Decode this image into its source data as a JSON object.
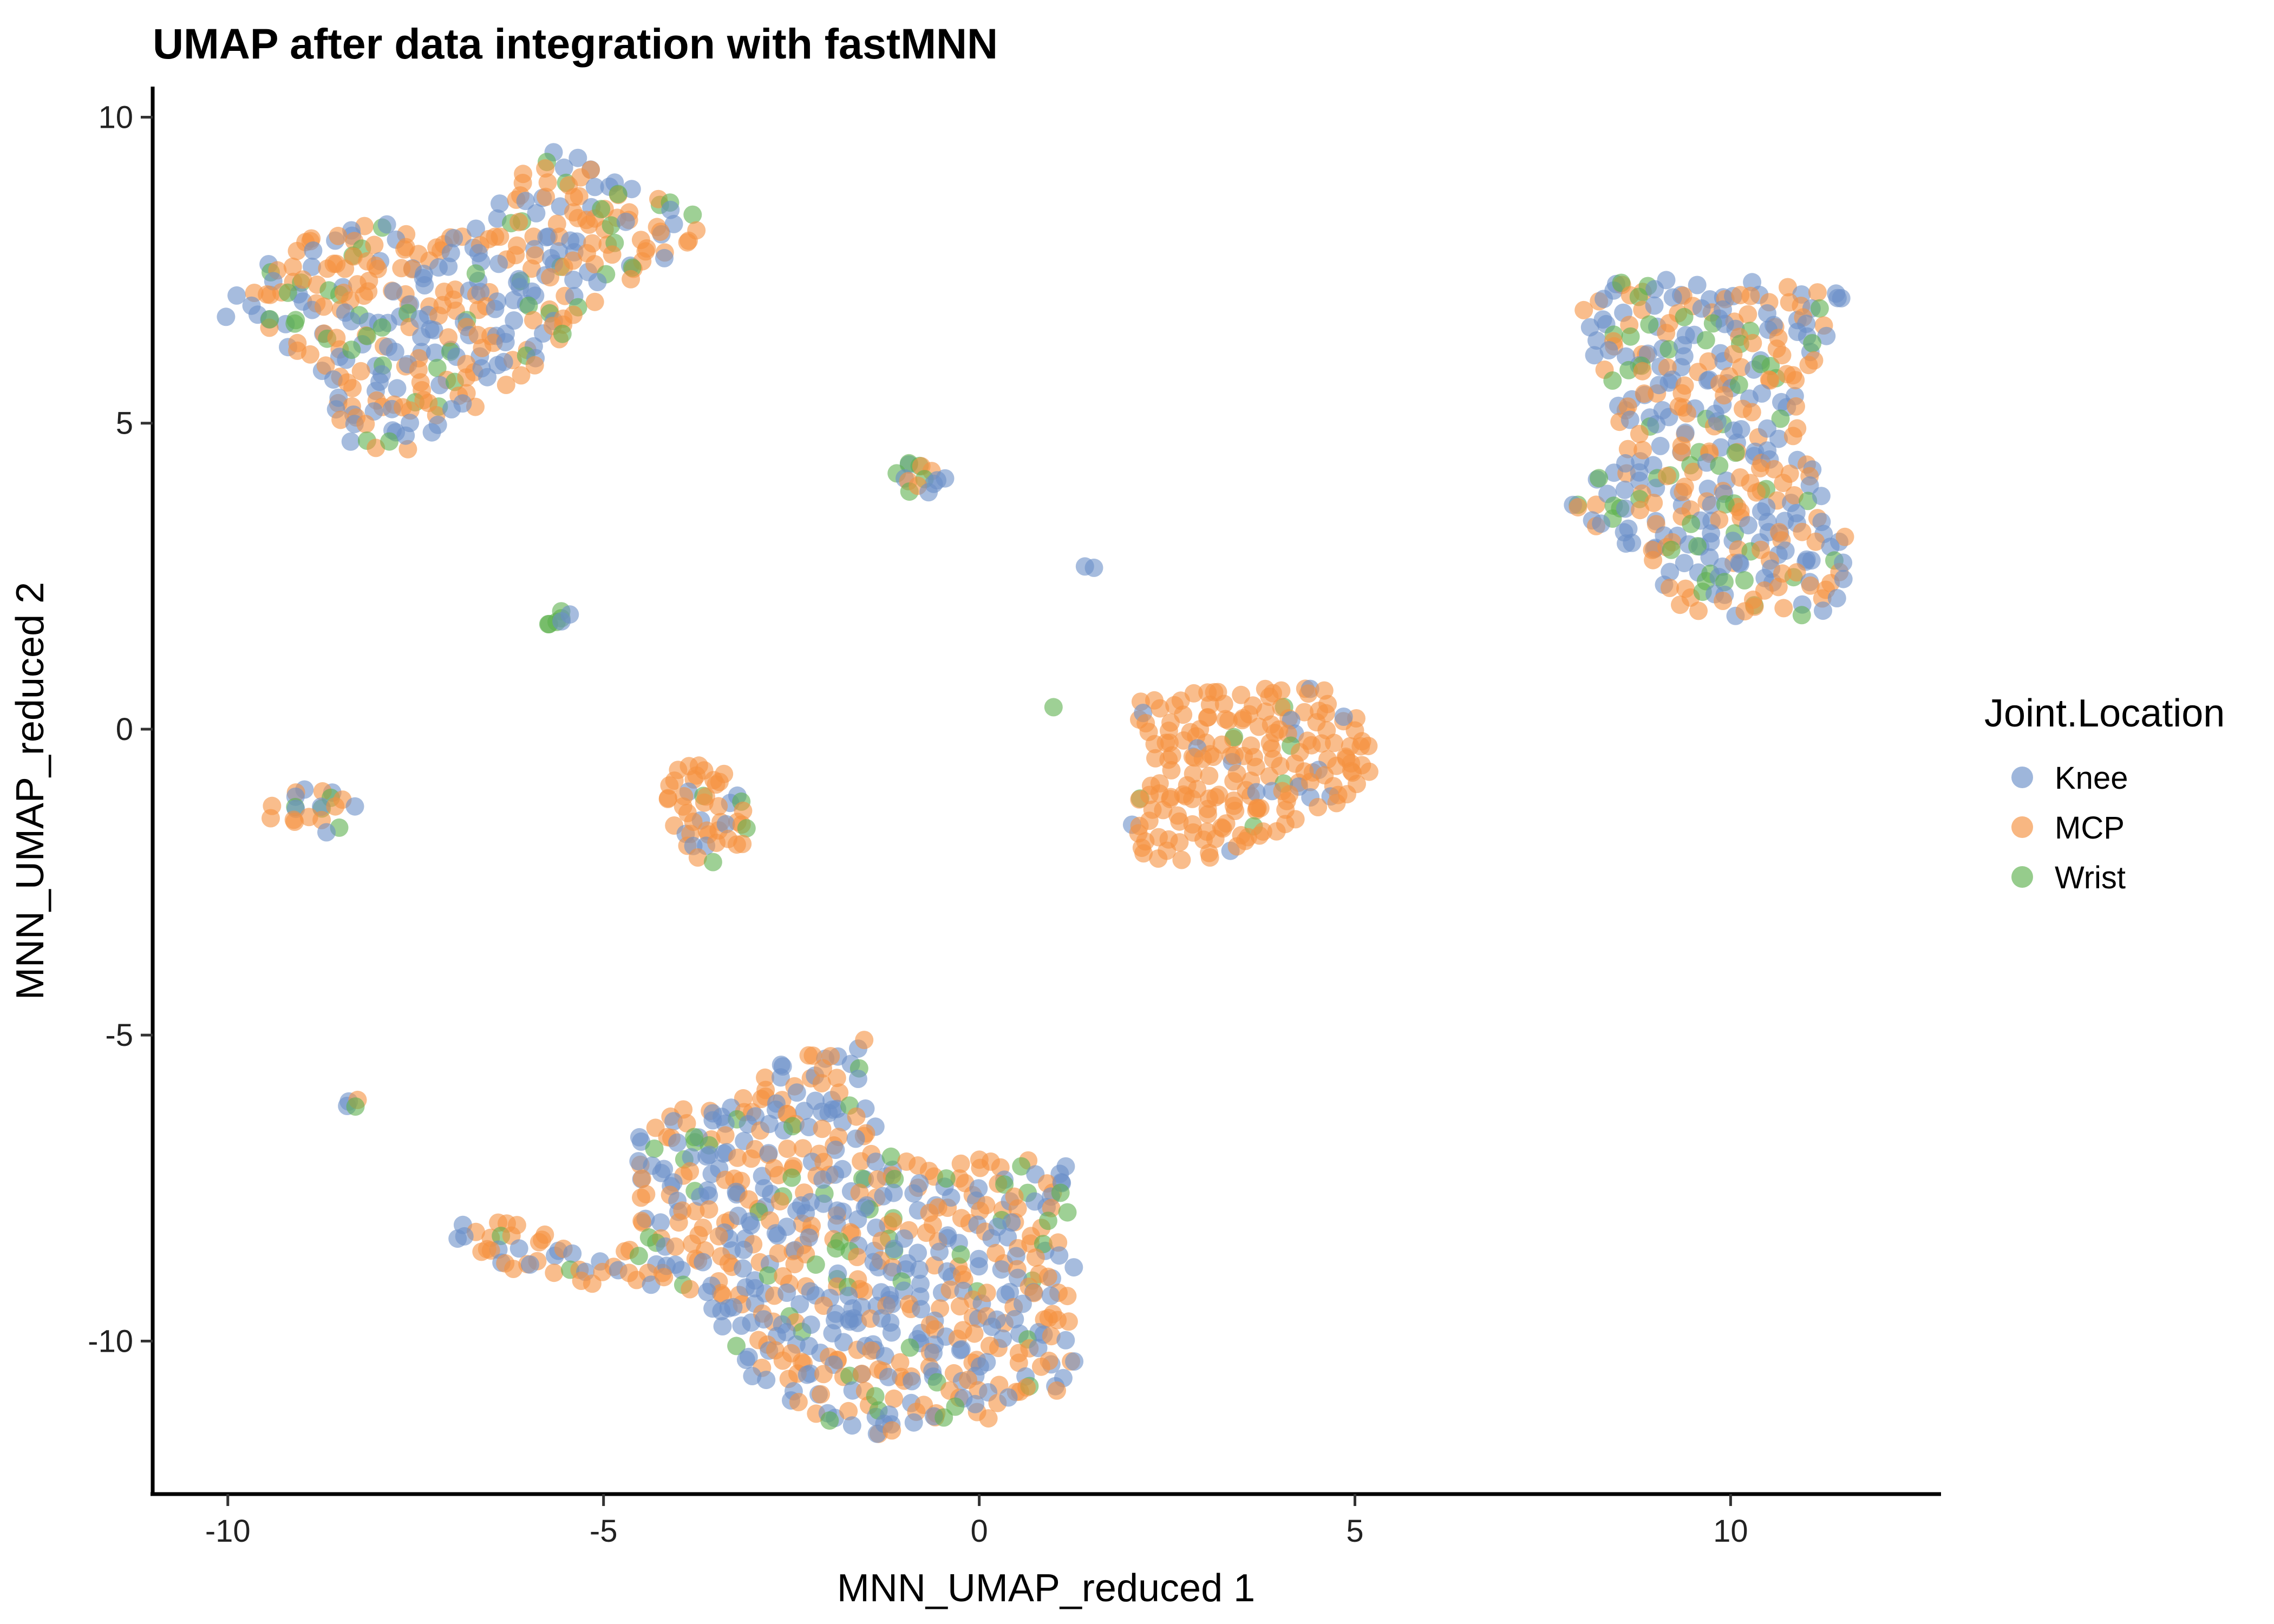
{
  "chart_data": {
    "type": "scatter",
    "title": "UMAP after data integration with fastMNN",
    "xlabel": "MNN_UMAP_reduced 1",
    "ylabel": "MNN_UMAP_reduced 2",
    "xlim": [
      -11,
      12.8
    ],
    "ylim": [
      -12.5,
      10.5
    ],
    "xticks": [
      {
        "value": -10,
        "label": "-10"
      },
      {
        "value": -5,
        "label": "-5"
      },
      {
        "value": 0,
        "label": "0"
      },
      {
        "value": 5,
        "label": "5"
      },
      {
        "value": 10,
        "label": "10"
      }
    ],
    "yticks": [
      {
        "value": -10,
        "label": "-10"
      },
      {
        "value": -5,
        "label": "-5"
      },
      {
        "value": 0,
        "label": "0"
      },
      {
        "value": 5,
        "label": "5"
      },
      {
        "value": 10,
        "label": "10"
      }
    ],
    "grid": false,
    "legend": {
      "title": "Joint.Location",
      "placement": "right"
    },
    "series": [
      {
        "name": "Knee",
        "color": "#6a8fc8"
      },
      {
        "name": "MCP",
        "color": "#f5913f"
      },
      {
        "name": "Wrist",
        "color": "#5db14e"
      }
    ],
    "clusters": [
      {
        "id": "top-left",
        "weights": [
          0.38,
          0.5,
          0.12
        ],
        "density": 0.42,
        "poly": [
          [
            -10.1,
            6.7
          ],
          [
            -9.6,
            7.6
          ],
          [
            -8.9,
            8.2
          ],
          [
            -8.0,
            8.3
          ],
          [
            -7.3,
            8.1
          ],
          [
            -6.5,
            8.4
          ],
          [
            -6.1,
            9.1
          ],
          [
            -5.6,
            9.5
          ],
          [
            -5.0,
            9.2
          ],
          [
            -4.4,
            8.8
          ],
          [
            -3.8,
            8.4
          ],
          [
            -3.6,
            8.0
          ],
          [
            -4.4,
            7.5
          ],
          [
            -5.2,
            6.9
          ],
          [
            -5.8,
            6.0
          ],
          [
            -6.4,
            5.5
          ],
          [
            -7.2,
            4.8
          ],
          [
            -7.7,
            4.5
          ],
          [
            -8.4,
            4.6
          ],
          [
            -8.7,
            5.2
          ],
          [
            -8.9,
            6.1
          ],
          [
            -9.6,
            6.4
          ]
        ]
      },
      {
        "id": "top-right",
        "weights": [
          0.46,
          0.4,
          0.14
        ],
        "density": 0.42,
        "poly": [
          [
            8.0,
            6.9
          ],
          [
            8.3,
            7.3
          ],
          [
            9.5,
            7.4
          ],
          [
            10.5,
            7.3
          ],
          [
            11.4,
            7.2
          ],
          [
            11.6,
            6.9
          ],
          [
            11.2,
            6.0
          ],
          [
            10.9,
            5.3
          ],
          [
            11.0,
            4.5
          ],
          [
            11.3,
            3.8
          ],
          [
            11.6,
            3.0
          ],
          [
            11.6,
            2.2
          ],
          [
            11.2,
            1.8
          ],
          [
            10.4,
            1.8
          ],
          [
            9.4,
            1.9
          ],
          [
            9.0,
            2.4
          ],
          [
            8.7,
            2.8
          ],
          [
            8.3,
            3.2
          ],
          [
            7.8,
            3.6
          ],
          [
            8.0,
            4.1
          ],
          [
            8.5,
            4.5
          ],
          [
            8.5,
            5.5
          ],
          [
            8.1,
            6.2
          ]
        ]
      },
      {
        "id": "center-right",
        "weights": [
          0.12,
          0.82,
          0.06
        ],
        "density": 0.45,
        "poly": [
          [
            2.0,
            0.5
          ],
          [
            2.9,
            0.6
          ],
          [
            3.5,
            0.7
          ],
          [
            4.6,
            0.7
          ],
          [
            5.1,
            0.1
          ],
          [
            5.3,
            -0.6
          ],
          [
            5.0,
            -1.2
          ],
          [
            4.2,
            -1.6
          ],
          [
            3.5,
            -2.0
          ],
          [
            2.8,
            -2.2
          ],
          [
            2.2,
            -2.1
          ],
          [
            1.9,
            -1.6
          ],
          [
            2.1,
            -0.8
          ],
          [
            2.3,
            -0.2
          ],
          [
            2.1,
            0.2
          ]
        ]
      },
      {
        "id": "bottom",
        "weights": [
          0.44,
          0.46,
          0.1
        ],
        "density": 0.42,
        "poly": [
          [
            -6.9,
            -8.1
          ],
          [
            -6.4,
            -8.0
          ],
          [
            -5.8,
            -8.2
          ],
          [
            -5.3,
            -8.6
          ],
          [
            -4.7,
            -8.4
          ],
          [
            -4.5,
            -7.6
          ],
          [
            -4.7,
            -6.6
          ],
          [
            -4.2,
            -6.2
          ],
          [
            -3.2,
            -6.1
          ],
          [
            -2.7,
            -5.4
          ],
          [
            -2.0,
            -5.2
          ],
          [
            -1.5,
            -5.0
          ],
          [
            -1.6,
            -6.0
          ],
          [
            -1.2,
            -6.9
          ],
          [
            -0.6,
            -7.1
          ],
          [
            0.3,
            -7.0
          ],
          [
            1.2,
            -7.0
          ],
          [
            1.2,
            -8.2
          ],
          [
            1.3,
            -9.2
          ],
          [
            1.3,
            -10.3
          ],
          [
            1.3,
            -10.8
          ],
          [
            0.3,
            -11.2
          ],
          [
            -0.5,
            -11.6
          ],
          [
            -1.6,
            -11.5
          ],
          [
            -2.6,
            -11.0
          ],
          [
            -3.1,
            -10.5
          ],
          [
            -3.5,
            -9.6
          ],
          [
            -4.4,
            -9.1
          ],
          [
            -5.0,
            -9.2
          ],
          [
            -5.6,
            -9.0
          ],
          [
            -6.5,
            -8.8
          ],
          [
            -7.0,
            -8.5
          ]
        ]
      },
      {
        "id": "mid-left-cluster",
        "weights": [
          0.2,
          0.7,
          0.1
        ],
        "density": 0.48,
        "poly": [
          [
            -4.1,
            -0.6
          ],
          [
            -3.7,
            -0.4
          ],
          [
            -3.4,
            -0.7
          ],
          [
            -3.2,
            -1.0
          ],
          [
            -3.0,
            -1.5
          ],
          [
            -3.1,
            -2.0
          ],
          [
            -3.5,
            -2.3
          ],
          [
            -3.9,
            -2.2
          ],
          [
            -4.1,
            -1.6
          ],
          [
            -4.2,
            -1.0
          ]
        ]
      },
      {
        "id": "far-left-cluster",
        "weights": [
          0.4,
          0.48,
          0.12
        ],
        "density": 0.48,
        "poly": [
          [
            -9.4,
            -1.2
          ],
          [
            -9.0,
            -0.9
          ],
          [
            -8.5,
            -1.0
          ],
          [
            -8.2,
            -1.0
          ],
          [
            -8.3,
            -1.5
          ],
          [
            -8.7,
            -1.8
          ],
          [
            -9.1,
            -1.6
          ],
          [
            -9.5,
            -1.5
          ]
        ]
      },
      {
        "id": "small-upper",
        "weights": [
          0.3,
          0.4,
          0.3
        ],
        "density": 0.6,
        "poly": [
          [
            -1.2,
            4.1
          ],
          [
            -0.9,
            4.4
          ],
          [
            -0.5,
            4.3
          ],
          [
            -0.4,
            3.9
          ],
          [
            -0.9,
            3.8
          ]
        ]
      },
      {
        "id": "small-left",
        "weights": [
          0.3,
          0.3,
          0.4
        ],
        "density": 0.7,
        "poly": [
          [
            -5.8,
            1.6
          ],
          [
            -5.6,
            1.95
          ],
          [
            -5.4,
            1.85
          ],
          [
            -5.5,
            1.6
          ]
        ]
      },
      {
        "id": "small-right",
        "weights": [
          0.3,
          0.4,
          0.3
        ],
        "density": 0.7,
        "poly": [
          [
            1.3,
            2.6
          ],
          [
            1.5,
            2.8
          ],
          [
            1.7,
            2.65
          ],
          [
            1.55,
            2.5
          ]
        ]
      },
      {
        "id": "small-bottom-left",
        "weights": [
          0.4,
          0.2,
          0.4
        ],
        "density": 0.7,
        "poly": [
          [
            -8.6,
            -6.1
          ],
          [
            -8.45,
            -5.95
          ],
          [
            -8.2,
            -6.05
          ],
          [
            -8.35,
            -6.25
          ]
        ]
      },
      {
        "id": "small-green",
        "weights": [
          0.1,
          0.1,
          0.8
        ],
        "density": 0.7,
        "poly": [
          [
            0.7,
            0.3
          ],
          [
            0.9,
            0.45
          ],
          [
            1.1,
            0.35
          ],
          [
            0.9,
            0.22
          ]
        ]
      }
    ]
  }
}
